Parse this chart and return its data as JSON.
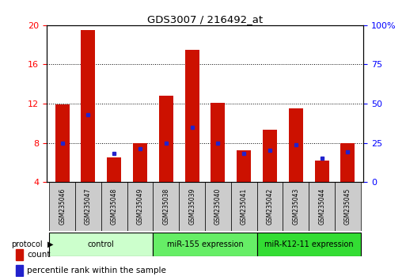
{
  "title": "GDS3007 / 216492_at",
  "samples": [
    "GSM235046",
    "GSM235047",
    "GSM235048",
    "GSM235049",
    "GSM235038",
    "GSM235039",
    "GSM235040",
    "GSM235041",
    "GSM235042",
    "GSM235043",
    "GSM235044",
    "GSM235045"
  ],
  "count_values": [
    11.9,
    19.5,
    6.5,
    8.0,
    12.8,
    17.5,
    12.1,
    7.2,
    9.3,
    11.5,
    6.2,
    8.0
  ],
  "percentile_values": [
    25,
    43,
    18,
    21,
    25,
    35,
    25,
    18,
    20,
    24,
    15,
    19
  ],
  "ylim_left": [
    4,
    20
  ],
  "ylim_right": [
    0,
    100
  ],
  "yticks_left": [
    4,
    8,
    12,
    16,
    20
  ],
  "yticks_right": [
    0,
    25,
    50,
    75,
    100
  ],
  "yticklabels_right": [
    "0",
    "25",
    "50",
    "75",
    "100%"
  ],
  "groups": [
    {
      "label": "control",
      "start": 0,
      "end": 3,
      "color": "#ccffcc"
    },
    {
      "label": "miR-155 expression",
      "start": 4,
      "end": 7,
      "color": "#66ee66"
    },
    {
      "label": "miR-K12-11 expression",
      "start": 8,
      "end": 11,
      "color": "#33dd33"
    }
  ],
  "bar_color": "#cc1100",
  "percentile_color": "#2222cc",
  "bar_width": 0.55,
  "background_color": "#ffffff",
  "tick_label_bg": "#cccccc",
  "plot_border_color": "#000000"
}
